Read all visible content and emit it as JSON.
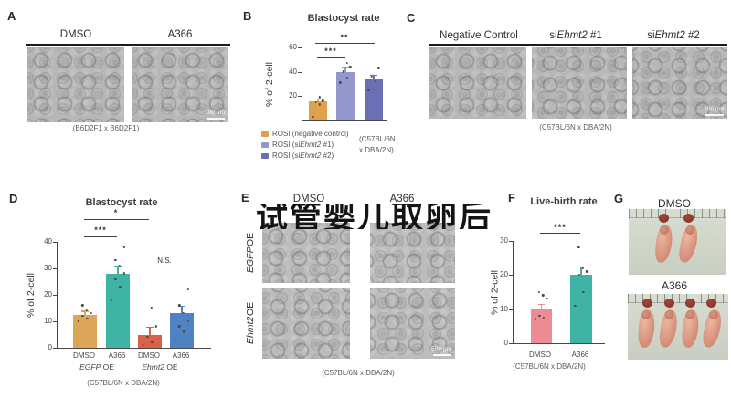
{
  "panels": {
    "A": {
      "label": "A",
      "headers": [
        "DMSO",
        "A366"
      ],
      "caption": "(B6D2F1 x B6D2F1)",
      "scale_bar": "100 μm"
    },
    "C": {
      "label": "C",
      "headers": [
        {
          "pre": "Negative Control",
          "gene": "",
          "post": ""
        },
        {
          "pre": "si",
          "gene": "Ehmt2",
          "post": " #1"
        },
        {
          "pre": "si",
          "gene": "Ehmt2",
          "post": " #2"
        }
      ],
      "caption": "(C57BL/6N x DBA/2N)",
      "scale_bar": "100 μm"
    },
    "E": {
      "label": "E",
      "col_headers": [
        "DMSO",
        "A366"
      ],
      "row_headers": [
        {
          "gene": "EGFP",
          "post": " OE"
        },
        {
          "gene": "Ehmt2",
          "post": " OE"
        }
      ],
      "caption": "(C57BL/6N x DBA/2N)",
      "scale_bar": "500 μm"
    },
    "G": {
      "label": "G",
      "headers": [
        "DMSO",
        "A366"
      ],
      "pup_counts": [
        2,
        4
      ]
    }
  },
  "watermark": "试管婴儿取卵后",
  "chart_data": [
    {
      "id": "B",
      "panel_label": "B",
      "type": "bar",
      "title": "Blastocyst rate",
      "ylabel": "% of 2-cell",
      "ylim": [
        0,
        60
      ],
      "yticks": [
        20,
        40,
        60
      ],
      "grid": false,
      "categories": [
        "ROSI (negative control)",
        "ROSI (siEhmt2 #1)",
        "ROSI (siEhmt2 #2)"
      ],
      "values": [
        16,
        40,
        34
      ],
      "errors": [
        2,
        4.5,
        3.5
      ],
      "points": [
        [
          3,
          13,
          15,
          16,
          19
        ],
        [
          31,
          35,
          40,
          44,
          47
        ],
        [
          25,
          32,
          36,
          43
        ]
      ],
      "colors": [
        "#E0A14E",
        "#9497CC",
        "#6B6FB3"
      ],
      "significance": [
        {
          "label": "***",
          "pair": "bar1-bar2"
        },
        {
          "label": "**",
          "pair": "bar1-bar3"
        }
      ],
      "legend_position": "bottom-left",
      "legend": [
        {
          "pre": "ROSI (negative control)",
          "gene": "",
          "post": "",
          "color": "#E0A14E"
        },
        {
          "pre": "ROSI (si",
          "gene": "Ehmt2",
          "post": " #1)",
          "color": "#9497CC"
        },
        {
          "pre": "ROSI (si",
          "gene": "Ehmt2",
          "post": " #2)",
          "color": "#6B6FB3"
        }
      ],
      "note_lines": [
        "(C57BL/6N",
        "x DBA/2N)"
      ]
    },
    {
      "id": "D",
      "panel_label": "D",
      "type": "bar",
      "title": "Blastocyst rate",
      "ylabel": "% of 2-cell",
      "ylim": [
        0,
        40
      ],
      "yticks": [
        0,
        10,
        20,
        30,
        40
      ],
      "grid": false,
      "categories": [
        "DMSO",
        "A366",
        "DMSO",
        "A366"
      ],
      "group_labels": [
        {
          "gene": "EGFP",
          "post": " OE"
        },
        {
          "gene": "Ehmt2",
          "post": " OE"
        }
      ],
      "values": [
        12.5,
        28,
        5,
        13
      ],
      "errors": [
        1.5,
        3,
        3,
        3
      ],
      "points": [
        [
          10,
          11,
          12,
          13,
          14,
          16
        ],
        [
          18,
          23,
          26,
          28,
          31,
          33,
          38
        ],
        [
          1,
          2,
          4,
          8,
          15
        ],
        [
          3,
          6,
          8,
          10,
          13,
          16,
          22
        ]
      ],
      "colors": [
        "#DCA558",
        "#3FB3A4",
        "#D9604A",
        "#4E82C2"
      ],
      "significance": [
        {
          "label": "*",
          "pair": "bar1-bar3"
        },
        {
          "label": "***",
          "pair": "bar1-bar2"
        },
        {
          "label": "N.S.",
          "pair": "bar3-bar4"
        }
      ],
      "caption": "(C57BL/6N x DBA/2N)"
    },
    {
      "id": "F",
      "panel_label": "F",
      "type": "bar",
      "title": "Live-birth rate",
      "ylabel": "% of 2-cell",
      "ylim": [
        0,
        30
      ],
      "yticks": [
        0,
        10,
        20,
        30
      ],
      "grid": false,
      "categories": [
        "DMSO",
        "A366"
      ],
      "values": [
        10,
        20
      ],
      "errors": [
        1.5,
        2.5
      ],
      "points": [
        [
          7,
          7.5,
          8,
          13,
          14,
          15
        ],
        [
          11,
          15,
          20,
          21,
          22,
          28
        ]
      ],
      "colors": [
        "#EE8C96",
        "#3FB3A4"
      ],
      "significance": [
        {
          "label": "***",
          "pair": "bar1-bar2"
        }
      ],
      "caption": "(C57BL/6N x DBA/2N)"
    }
  ]
}
